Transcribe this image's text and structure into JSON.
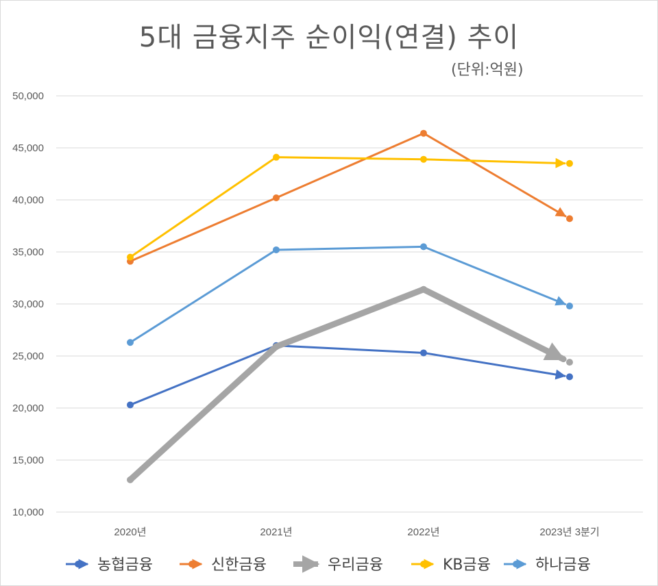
{
  "title": "5대 금융지주 순이익(연결) 추이",
  "unit": "(단위:억원)",
  "chart_data": {
    "type": "line",
    "title": "5대 금융지주 순이익(연결) 추이",
    "unit_label": "(단위:억원)",
    "categories": [
      "2020년",
      "2021년",
      "2022년",
      "2023년 3분기"
    ],
    "ylim": [
      10000,
      50000
    ],
    "yticks": [
      "10,000",
      "15,000",
      "20,000",
      "25,000",
      "30,000",
      "35,000",
      "40,000",
      "45,000",
      "50,000"
    ],
    "grid": true,
    "legend_position": "bottom",
    "series": [
      {
        "name": "농협금융",
        "values": [
          20300,
          26000,
          25300,
          23000
        ],
        "color": "#4472C4",
        "width": 3
      },
      {
        "name": "신한금융",
        "values": [
          34100,
          40200,
          46400,
          38200
        ],
        "color": "#ED7D31",
        "width": 3
      },
      {
        "name": "우리금융",
        "values": [
          13100,
          25900,
          31400,
          24400
        ],
        "color": "#A5A5A5",
        "width": 9
      },
      {
        "name": "KB금융",
        "values": [
          34500,
          44100,
          43900,
          43500
        ],
        "color": "#FFC000",
        "width": 3
      },
      {
        "name": "하나금융",
        "values": [
          26300,
          35200,
          35500,
          29800
        ],
        "color": "#5B9BD5",
        "width": 3
      }
    ]
  }
}
